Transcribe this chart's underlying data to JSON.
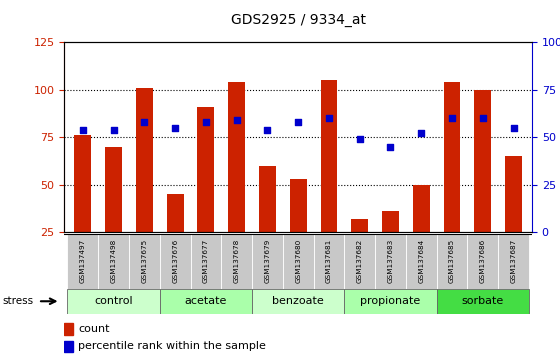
{
  "title": "GDS2925 / 9334_at",
  "samples": [
    "GSM137497",
    "GSM137498",
    "GSM137675",
    "GSM137676",
    "GSM137677",
    "GSM137678",
    "GSM137679",
    "GSM137680",
    "GSM137681",
    "GSM137682",
    "GSM137683",
    "GSM137684",
    "GSM137685",
    "GSM137686",
    "GSM137687"
  ],
  "bar_values": [
    76,
    70,
    101,
    45,
    91,
    104,
    60,
    53,
    105,
    32,
    36,
    50,
    104,
    100,
    65
  ],
  "dot_left": [
    79,
    79,
    83,
    80,
    83,
    84,
    79,
    83,
    85,
    74,
    70,
    77,
    85,
    85,
    80
  ],
  "groups": [
    {
      "label": "control",
      "start": 0,
      "end": 2,
      "color": "#ccffcc"
    },
    {
      "label": "acetate",
      "start": 3,
      "end": 5,
      "color": "#aaffaa"
    },
    {
      "label": "benzoate",
      "start": 6,
      "end": 8,
      "color": "#ccffcc"
    },
    {
      "label": "propionate",
      "start": 9,
      "end": 11,
      "color": "#aaffaa"
    },
    {
      "label": "sorbate",
      "start": 12,
      "end": 14,
      "color": "#44dd44"
    }
  ],
  "bar_color": "#cc2200",
  "dot_color": "#0000cc",
  "left_ylim": [
    25,
    125
  ],
  "right_ylim": [
    0,
    100
  ],
  "left_yticks": [
    25,
    50,
    75,
    100,
    125
  ],
  "right_yticks": [
    0,
    25,
    50,
    75,
    100
  ],
  "left_color": "#cc2200",
  "right_color": "#0000cc",
  "stress_label": "stress",
  "legend_count": "count",
  "legend_pct": "percentile rank within the sample"
}
